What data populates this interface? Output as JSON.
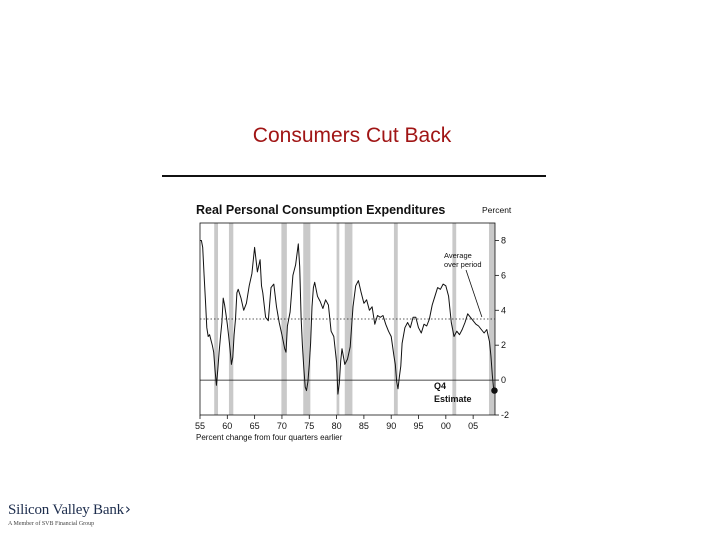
{
  "slide": {
    "title": "Consumers Cut Back"
  },
  "logo": {
    "name": "Silicon Valley Bank",
    "tagline": "A Member of SVB Financial Group"
  },
  "chart_data": {
    "type": "line",
    "title": "Real Personal Consumption Expenditures",
    "ylabel": "Percent",
    "xlabel": "Percent change from four quarters earlier",
    "x_ticks": [
      "55",
      "60",
      "65",
      "70",
      "75",
      "80",
      "85",
      "90",
      "95",
      "00",
      "05"
    ],
    "y_ticks": [
      8,
      6,
      4,
      2,
      0,
      -2
    ],
    "xlim": [
      1955,
      2009
    ],
    "ylim": [
      -2,
      9
    ],
    "grid": false,
    "recessions": [
      [
        1957.6,
        1958.3
      ],
      [
        1960.3,
        1961.1
      ],
      [
        1969.9,
        1970.9
      ],
      [
        1973.9,
        1975.2
      ],
      [
        1980.0,
        1980.5
      ],
      [
        1981.5,
        1982.9
      ],
      [
        1990.5,
        1991.2
      ],
      [
        2001.2,
        2001.9
      ],
      [
        2007.9,
        2009.0
      ]
    ],
    "average_over_period": 3.5,
    "annotations": {
      "average": "Average over period",
      "estimate": "Q4 Estimate"
    },
    "series": [
      {
        "x": [
          1955.0,
          1955.25,
          1955.5,
          1955.75,
          1956.0,
          1956.25,
          1956.5,
          1956.75,
          1957.0,
          1957.25,
          1957.5,
          1957.75,
          1958.0,
          1958.25,
          1958.5,
          1958.75,
          1959.0,
          1959.25,
          1959.5,
          1959.75,
          1960.0,
          1960.25,
          1960.5,
          1960.75,
          1961.0,
          1961.25,
          1961.5,
          1961.75,
          1962.0,
          1962.5,
          1963.0,
          1963.5,
          1964.0,
          1964.5,
          1965.0,
          1965.5,
          1966.0,
          1966.25,
          1966.5,
          1967.0,
          1967.5,
          1968.0,
          1968.5,
          1969.0,
          1969.5,
          1970.0,
          1970.5,
          1970.75,
          1971.0,
          1971.5,
          1972.0,
          1972.5,
          1973.0,
          1973.25,
          1973.5,
          1973.75,
          1974.0,
          1974.25,
          1974.5,
          1974.75,
          1975.0,
          1975.25,
          1975.5,
          1975.75,
          1976.0,
          1976.5,
          1977.0,
          1977.5,
          1978.0,
          1978.5,
          1979.0,
          1979.5,
          1980.0,
          1980.25,
          1980.5,
          1980.75,
          1981.0,
          1981.5,
          1982.0,
          1982.5,
          1983.0,
          1983.5,
          1984.0,
          1984.5,
          1985.0,
          1985.5,
          1986.0,
          1986.5,
          1987.0,
          1987.5,
          1988.0,
          1988.5,
          1989.0,
          1989.5,
          1990.0,
          1990.5,
          1990.75,
          1991.0,
          1991.25,
          1991.5,
          1991.75,
          1992.0,
          1992.5,
          1993.0,
          1993.5,
          1994.0,
          1994.5,
          1995.0,
          1995.5,
          1996.0,
          1996.5,
          1997.0,
          1997.5,
          1998.0,
          1998.5,
          1999.0,
          1999.5,
          2000.0,
          2000.5,
          2001.0,
          2001.5,
          2002.0,
          2002.5,
          2003.0,
          2003.5,
          2004.0,
          2004.5,
          2005.0,
          2005.5,
          2006.0,
          2006.5,
          2007.0,
          2007.5,
          2008.0,
          2008.25,
          2008.5,
          2008.75
        ],
        "y": [
          8.0,
          8.0,
          7.6,
          6.0,
          4.5,
          3.0,
          2.5,
          2.6,
          2.3,
          2.0,
          1.6,
          0.6,
          -0.3,
          0.6,
          1.6,
          2.5,
          3.3,
          4.7,
          4.3,
          3.8,
          3.2,
          2.5,
          1.8,
          0.9,
          1.3,
          2.6,
          3.5,
          5.0,
          5.2,
          4.7,
          4.0,
          4.4,
          5.4,
          6.1,
          7.6,
          6.2,
          6.9,
          5.4,
          5.0,
          3.6,
          3.4,
          5.3,
          5.5,
          4.2,
          3.3,
          2.6,
          1.8,
          1.6,
          3.1,
          3.9,
          6.0,
          6.6,
          7.8,
          6.5,
          3.6,
          2.0,
          0.7,
          -0.4,
          -0.6,
          -0.1,
          0.9,
          2.1,
          4.2,
          5.3,
          5.6,
          4.8,
          4.5,
          4.1,
          4.6,
          4.3,
          2.8,
          2.5,
          1.0,
          -0.8,
          -0.2,
          1.1,
          1.8,
          0.9,
          1.2,
          1.9,
          4.2,
          5.4,
          5.7,
          5.0,
          4.4,
          4.6,
          4.0,
          4.2,
          3.2,
          3.7,
          3.6,
          3.7,
          3.2,
          2.8,
          2.5,
          1.4,
          0.9,
          -0.1,
          -0.5,
          0.2,
          0.8,
          2.1,
          3.0,
          3.3,
          3.0,
          3.6,
          3.6,
          3.0,
          2.7,
          3.2,
          3.1,
          3.5,
          4.3,
          4.8,
          5.3,
          5.2,
          5.5,
          5.4,
          4.8,
          3.3,
          2.5,
          2.8,
          2.6,
          2.9,
          3.3,
          3.8,
          3.6,
          3.4,
          3.2,
          3.1,
          2.9,
          2.7,
          2.9,
          2.2,
          1.4,
          0.3,
          -0.5
        ]
      }
    ],
    "q4_estimate": {
      "x": 2008.9,
      "y": -0.6
    }
  }
}
